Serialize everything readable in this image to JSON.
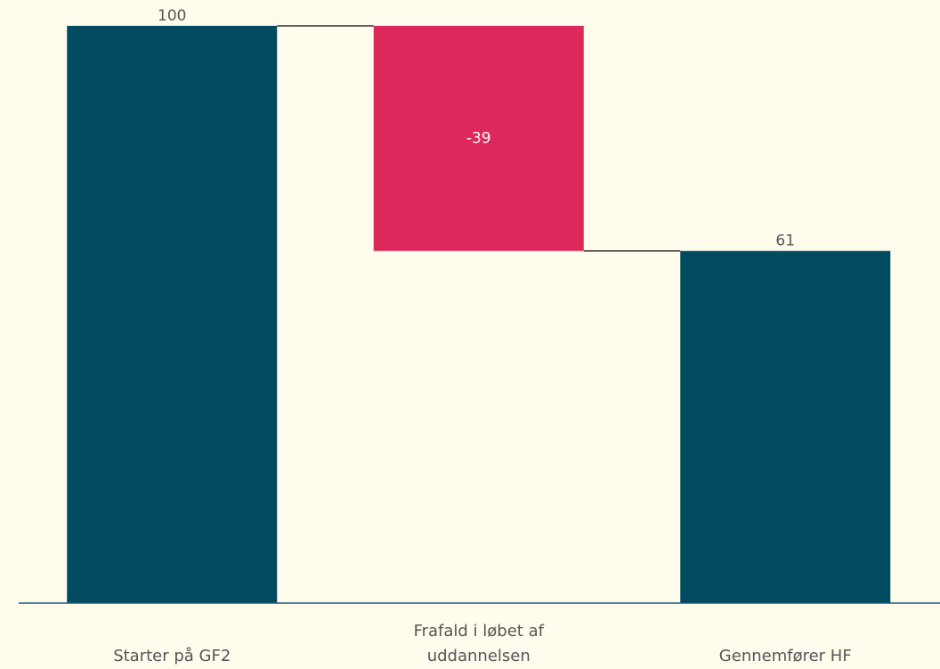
{
  "chart_data": {
    "type": "waterfall",
    "categories": [
      "Starter på GF2",
      "Frafald i løbet af uddannelsen",
      "Gennemfører HF"
    ],
    "values": [
      100,
      -39,
      61
    ],
    "totals": [
      true,
      false,
      true
    ],
    "colors": [
      "#004b5f",
      "#dc285a",
      "#004b5f"
    ],
    "ylim": [
      0,
      100
    ]
  }
}
